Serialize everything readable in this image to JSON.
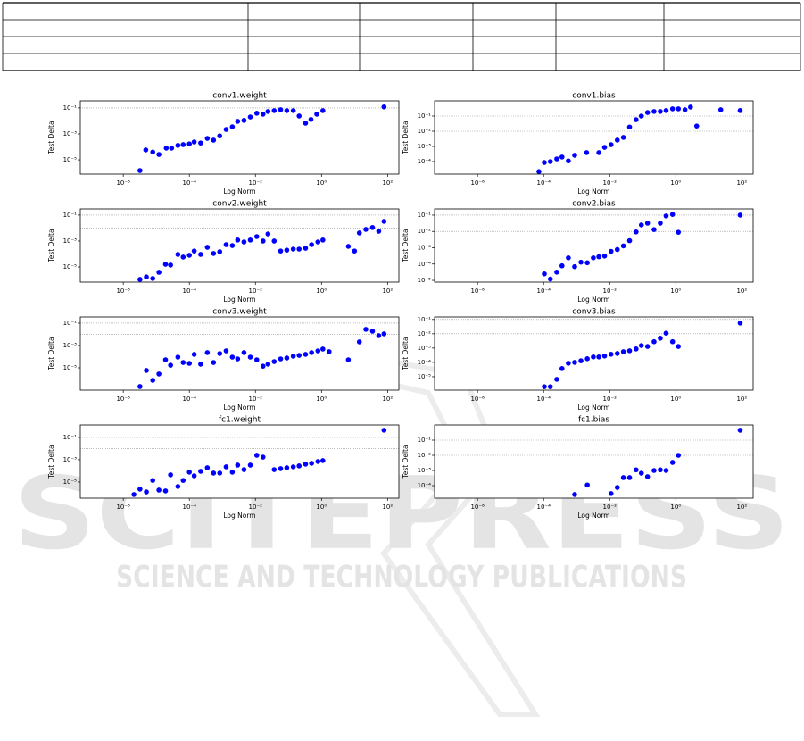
{
  "watermark": {
    "title": "SCITEPRESS",
    "subtitle": "SCIENCE AND TECHNOLOGY PUBLICATIONS"
  },
  "chart_data": [
    {
      "type": "scatter",
      "title": "conv1.weight",
      "x_label": "Log Norm",
      "y_label": "Test Delta",
      "color": "#0000ff",
      "xscale": "log",
      "yscale": "log",
      "xlim": [
        5e-08,
        220
      ],
      "ylim": [
        8e-07,
        0.35
      ],
      "hlines": [
        0.1,
        0.01
      ],
      "xticks": [
        {
          "value": 1e-06,
          "label": "10⁻⁶"
        },
        {
          "value": 0.0001,
          "label": "10⁻⁴"
        },
        {
          "value": 0.01,
          "label": "10⁻²"
        },
        {
          "value": 1,
          "label": "10⁰"
        },
        {
          "value": 100,
          "label": "10²"
        }
      ],
      "yticks": [
        {
          "value": 1e-05,
          "label": "10⁻⁵"
        },
        {
          "value": 0.001,
          "label": "10⁻³"
        },
        {
          "value": 0.1,
          "label": "10⁻¹"
        }
      ],
      "x": [
        3.2e-06,
        4.8e-06,
        7.8e-06,
        1.2e-05,
        2e-05,
        2.9e-05,
        4.5e-05,
        6.5e-05,
        0.0001,
        0.00014,
        0.00022,
        0.00035,
        0.00054,
        0.00083,
        0.0013,
        0.002,
        0.0029,
        0.0045,
        0.007,
        0.011,
        0.017,
        0.024,
        0.037,
        0.058,
        0.089,
        0.14,
        0.21,
        0.33,
        0.48,
        0.72,
        1.1,
        78
      ],
      "values": [
        1.5e-06,
        5.8e-05,
        4e-05,
        2.6e-05,
        8e-05,
        8e-05,
        0.00013,
        0.00015,
        0.00017,
        0.00024,
        0.0002,
        0.00045,
        0.00033,
        0.0007,
        0.0022,
        0.0035,
        0.0093,
        0.011,
        0.02,
        0.039,
        0.033,
        0.053,
        0.062,
        0.073,
        0.062,
        0.062,
        0.024,
        0.0067,
        0.013,
        0.033,
        0.062,
        0.12
      ]
    },
    {
      "type": "scatter",
      "title": "conv1.bias",
      "x_label": "Log Norm",
      "y_label": "Test Delta",
      "color": "#0000ff",
      "xscale": "log",
      "yscale": "log",
      "xlim": [
        5e-08,
        220
      ],
      "ylim": [
        1.5e-05,
        1
      ],
      "hlines": [
        0.1,
        0.01
      ],
      "xticks": [
        {
          "value": 1e-06,
          "label": "10⁻⁶"
        },
        {
          "value": 0.0001,
          "label": "10⁻⁴"
        },
        {
          "value": 0.01,
          "label": "10⁻²"
        },
        {
          "value": 1,
          "label": "10⁰"
        },
        {
          "value": 100,
          "label": "10²"
        }
      ],
      "yticks": [
        {
          "value": 0.0001,
          "label": "10⁻⁴"
        },
        {
          "value": 0.001,
          "label": "10⁻³"
        },
        {
          "value": 0.01,
          "label": "10⁻²"
        },
        {
          "value": 0.1,
          "label": "10⁻¹"
        }
      ],
      "x": [
        7.2e-05,
        0.000105,
        0.00016,
        0.00025,
        0.00036,
        0.00056,
        0.00087,
        0.002,
        0.0047,
        0.007,
        0.011,
        0.017,
        0.026,
        0.04,
        0.063,
        0.091,
        0.14,
        0.22,
        0.34,
        0.51,
        0.8,
        1.2,
        1.9,
        2.8,
        4.3,
        23,
        89
      ],
      "values": [
        2.2e-05,
        8.7e-05,
        0.0001,
        0.00015,
        0.0002,
        0.00011,
        0.00026,
        0.00039,
        0.00039,
        0.00087,
        0.0013,
        0.0026,
        0.0039,
        0.019,
        0.058,
        0.1,
        0.17,
        0.2,
        0.2,
        0.23,
        0.3,
        0.3,
        0.26,
        0.39,
        0.022,
        0.26,
        0.23
      ]
    },
    {
      "type": "scatter",
      "title": "conv2.weight",
      "x_label": "Log Norm",
      "y_label": "Test Delta",
      "color": "#0000ff",
      "xscale": "log",
      "yscale": "log",
      "xlim": [
        5e-08,
        220
      ],
      "ylim": [
        6.8e-07,
        0.3
      ],
      "hlines": [
        0.1,
        0.01
      ],
      "xticks": [
        {
          "value": 1e-06,
          "label": "10⁻⁶"
        },
        {
          "value": 0.0001,
          "label": "10⁻⁴"
        },
        {
          "value": 0.01,
          "label": "10⁻²"
        },
        {
          "value": 1,
          "label": "10⁰"
        },
        {
          "value": 100,
          "label": "10²"
        }
      ],
      "yticks": [
        {
          "value": 1e-05,
          "label": "10⁻⁵"
        },
        {
          "value": 0.001,
          "label": "10⁻³"
        },
        {
          "value": 0.1,
          "label": "10⁻¹"
        }
      ],
      "x": [
        3.2e-06,
        5e-06,
        7.8e-06,
        1.2e-05,
        1.9e-05,
        2.7e-05,
        4.5e-05,
        6.5e-05,
        0.0001,
        0.00014,
        0.00022,
        0.00035,
        0.00054,
        0.00083,
        0.0013,
        0.002,
        0.0029,
        0.0045,
        0.007,
        0.011,
        0.017,
        0.024,
        0.037,
        0.058,
        0.089,
        0.14,
        0.21,
        0.33,
        0.5,
        0.78,
        1.1,
        6.5,
        10,
        14,
        22,
        35,
        54,
        78
      ],
      "values": [
        1.1e-06,
        1.7e-06,
        1.3e-06,
        3.9e-06,
        1.6e-05,
        1.4e-05,
        9.3e-05,
        5.8e-05,
        8e-05,
        0.00017,
        9.3e-05,
        0.00033,
        0.00011,
        0.00015,
        0.00053,
        0.00045,
        0.0012,
        0.00085,
        0.0012,
        0.0022,
        0.001,
        0.0035,
        0.001,
        0.00017,
        0.0002,
        0.00024,
        0.00024,
        0.00028,
        0.00053,
        0.00085,
        0.0012,
        0.00039,
        0.00017,
        0.0042,
        0.0079,
        0.011,
        0.0057,
        0.033
      ]
    },
    {
      "type": "scatter",
      "title": "conv2.bias",
      "x_label": "Log Norm",
      "y_label": "Test Delta",
      "color": "#0000ff",
      "xscale": "log",
      "yscale": "log",
      "xlim": [
        5e-08,
        220
      ],
      "ylim": [
        7.8e-06,
        0.24
      ],
      "hlines": [
        0.1,
        0.01
      ],
      "xticks": [
        {
          "value": 1e-06,
          "label": "10⁻⁶"
        },
        {
          "value": 0.0001,
          "label": "10⁻⁴"
        },
        {
          "value": 0.01,
          "label": "10⁻²"
        },
        {
          "value": 1,
          "label": "10⁰"
        },
        {
          "value": 100,
          "label": "10²"
        }
      ],
      "yticks": [
        {
          "value": 1e-05,
          "label": "10⁻⁵"
        },
        {
          "value": 0.0001,
          "label": "10⁻⁴"
        },
        {
          "value": 0.001,
          "label": "10⁻³"
        },
        {
          "value": 0.01,
          "label": "10⁻²"
        },
        {
          "value": 0.1,
          "label": "10⁻¹"
        }
      ],
      "x": [
        0.000105,
        0.00016,
        0.00025,
        0.00036,
        0.00056,
        0.00087,
        0.00135,
        0.0021,
        0.0032,
        0.0047,
        0.007,
        0.011,
        0.017,
        0.026,
        0.04,
        0.063,
        0.091,
        0.14,
        0.22,
        0.34,
        0.51,
        0.8,
        1.2,
        89
      ],
      "values": [
        2.5e-05,
        1.2e-05,
        3.2e-05,
        7.8e-05,
        0.00024,
        6.9e-05,
        0.00013,
        0.00012,
        0.00024,
        0.00028,
        0.00031,
        0.0006,
        0.00078,
        0.0013,
        0.0027,
        0.0093,
        0.025,
        0.032,
        0.013,
        0.032,
        0.089,
        0.11,
        0.0089,
        0.1
      ]
    },
    {
      "type": "scatter",
      "title": "conv3.weight",
      "x_label": "Log Norm",
      "y_label": "Test Delta",
      "color": "#0000ff",
      "xscale": "log",
      "yscale": "log",
      "xlim": [
        5e-08,
        220
      ],
      "ylim": [
        1e-07,
        0.36
      ],
      "hlines": [
        0.1,
        0.01
      ],
      "xticks": [
        {
          "value": 1e-06,
          "label": "10⁻⁶"
        },
        {
          "value": 0.0001,
          "label": "10⁻⁴"
        },
        {
          "value": 0.01,
          "label": "10⁻²"
        },
        {
          "value": 1,
          "label": "10⁰"
        },
        {
          "value": 100,
          "label": "10²"
        }
      ],
      "yticks": [
        {
          "value": 1e-05,
          "label": "10⁻⁵"
        },
        {
          "value": 0.001,
          "label": "10⁻³"
        },
        {
          "value": 0.1,
          "label": "10⁻¹"
        }
      ],
      "x": [
        3.2e-06,
        5e-06,
        7.8e-06,
        1.2e-05,
        1.9e-05,
        2.7e-05,
        4.5e-05,
        6.5e-05,
        0.0001,
        0.00014,
        0.00022,
        0.00035,
        0.00054,
        0.00083,
        0.0013,
        0.002,
        0.0029,
        0.0045,
        0.007,
        0.011,
        0.017,
        0.024,
        0.037,
        0.058,
        0.089,
        0.14,
        0.21,
        0.33,
        0.5,
        0.78,
        1.1,
        1.7,
        6.5,
        14,
        22,
        35,
        54,
        78
      ],
      "values": [
        2.1e-07,
        5.8e-06,
        7.6e-07,
        2.8e-06,
        5.2e-05,
        1.7e-05,
        9.1e-05,
        3e-05,
        2.5e-05,
        0.00016,
        2.1e-05,
        0.00023,
        3e-05,
        0.00019,
        0.00033,
        9.1e-05,
        6.3e-05,
        0.00023,
        9.1e-05,
        5.2e-05,
        1.4e-05,
        2.1e-05,
        3.6e-05,
        6.3e-05,
        7.6e-05,
        0.00011,
        0.00013,
        0.00016,
        0.00023,
        0.00033,
        0.00048,
        0.00028,
        5.2e-05,
        0.0021,
        0.028,
        0.019,
        0.0076,
        0.011
      ]
    },
    {
      "type": "scatter",
      "title": "conv3.bias",
      "x_label": "Log Norm",
      "y_label": "Test Delta",
      "color": "#0000ff",
      "xscale": "log",
      "yscale": "log",
      "xlim": [
        5e-08,
        220
      ],
      "ylim": [
        1.15e-06,
        0.15
      ],
      "hlines": [
        0.1,
        0.01
      ],
      "xticks": [
        {
          "value": 1e-06,
          "label": "10⁻⁶"
        },
        {
          "value": 0.0001,
          "label": "10⁻⁴"
        },
        {
          "value": 0.01,
          "label": "10⁻²"
        },
        {
          "value": 1,
          "label": "10⁰"
        },
        {
          "value": 100,
          "label": "10²"
        }
      ],
      "yticks": [
        {
          "value": 1e-05,
          "label": "10⁻⁵"
        },
        {
          "value": 0.0001,
          "label": "10⁻⁴"
        },
        {
          "value": 0.001,
          "label": "10⁻³"
        },
        {
          "value": 0.01,
          "label": "10⁻²"
        },
        {
          "value": 0.1,
          "label": "10⁻¹"
        }
      ],
      "x": [
        0.000105,
        0.00016,
        0.00025,
        0.00036,
        0.00056,
        0.00087,
        0.00135,
        0.0021,
        0.0032,
        0.0047,
        0.007,
        0.011,
        0.017,
        0.026,
        0.04,
        0.063,
        0.091,
        0.14,
        0.22,
        0.34,
        0.51,
        0.8,
        1.2,
        89
      ],
      "values": [
        2e-06,
        2e-06,
        6.5e-06,
        3.7e-05,
        8.7e-05,
        0.0001,
        0.00013,
        0.00018,
        0.00024,
        0.00024,
        0.00028,
        0.00037,
        0.00042,
        0.00056,
        0.00065,
        0.00087,
        0.0015,
        0.0013,
        0.0028,
        0.0049,
        0.011,
        0.0028,
        0.0013,
        0.056
      ]
    },
    {
      "type": "scatter",
      "title": "fc1.weight",
      "x_label": "Log Norm",
      "y_label": "Test Delta",
      "color": "#0000ff",
      "xscale": "log",
      "yscale": "log",
      "xlim": [
        5e-08,
        220
      ],
      "ylim": [
        3.6e-07,
        1.3
      ],
      "hlines": [
        0.1,
        0.01
      ],
      "xticks": [
        {
          "value": 1e-06,
          "label": "10⁻⁶"
        },
        {
          "value": 0.0001,
          "label": "10⁻⁴"
        },
        {
          "value": 0.01,
          "label": "10⁻²"
        },
        {
          "value": 1,
          "label": "10⁰"
        },
        {
          "value": 100,
          "label": "10²"
        }
      ],
      "yticks": [
        {
          "value": 1e-05,
          "label": "10⁻⁵"
        },
        {
          "value": 0.001,
          "label": "10⁻³"
        },
        {
          "value": 0.1,
          "label": "10⁻¹"
        }
      ],
      "x": [
        2.1e-06,
        3.2e-06,
        5e-06,
        7.8e-06,
        1.2e-05,
        1.9e-05,
        2.7e-05,
        4.5e-05,
        6.5e-05,
        0.0001,
        0.00014,
        0.00022,
        0.00035,
        0.00054,
        0.00083,
        0.0013,
        0.002,
        0.0029,
        0.0045,
        0.007,
        0.011,
        0.017,
        0.037,
        0.058,
        0.089,
        0.14,
        0.21,
        0.33,
        0.5,
        0.78,
        1.1,
        78
      ],
      "values": [
        7.6e-07,
        2.3e-06,
        1.3e-06,
        1.4e-05,
        1.9e-06,
        1.6e-06,
        4.4e-05,
        4e-06,
        1.4e-05,
        7.6e-05,
        3.6e-05,
        9.1e-05,
        0.00019,
        6.3e-05,
        6.3e-05,
        0.00023,
        7.6e-05,
        0.00033,
        0.00013,
        0.00033,
        0.0025,
        0.0017,
        0.00013,
        0.00016,
        0.00019,
        0.00023,
        0.00028,
        0.0004,
        0.00048,
        0.00069,
        0.00083,
        0.44
      ]
    },
    {
      "type": "scatter",
      "title": "fc1.bias",
      "x_label": "Log Norm",
      "y_label": "Test Delta",
      "color": "#0000ff",
      "xscale": "log",
      "yscale": "log",
      "xlim": [
        5e-08,
        220
      ],
      "ylim": [
        1.5e-05,
        1
      ],
      "hlines": [
        0.1,
        0.01
      ],
      "xticks": [
        {
          "value": 1e-06,
          "label": "10⁻⁶"
        },
        {
          "value": 0.0001,
          "label": "10⁻⁴"
        },
        {
          "value": 0.01,
          "label": "10⁻²"
        },
        {
          "value": 1,
          "label": "10⁰"
        },
        {
          "value": 100,
          "label": "10²"
        }
      ],
      "yticks": [
        {
          "value": 0.0001,
          "label": "10⁻⁴"
        },
        {
          "value": 0.001,
          "label": "10⁻³"
        },
        {
          "value": 0.01,
          "label": "10⁻²"
        },
        {
          "value": 0.1,
          "label": "10⁻¹"
        }
      ],
      "x": [
        0.00087,
        0.0021,
        0.011,
        0.017,
        0.026,
        0.04,
        0.063,
        0.091,
        0.14,
        0.22,
        0.34,
        0.51,
        0.8,
        1.2,
        89
      ],
      "values": [
        2.6e-05,
        0.00011,
        3e-05,
        7.6e-05,
        0.00034,
        0.00034,
        0.0011,
        0.00066,
        0.00039,
        0.001,
        0.0011,
        0.001,
        0.0034,
        0.01,
        0.45
      ]
    }
  ]
}
